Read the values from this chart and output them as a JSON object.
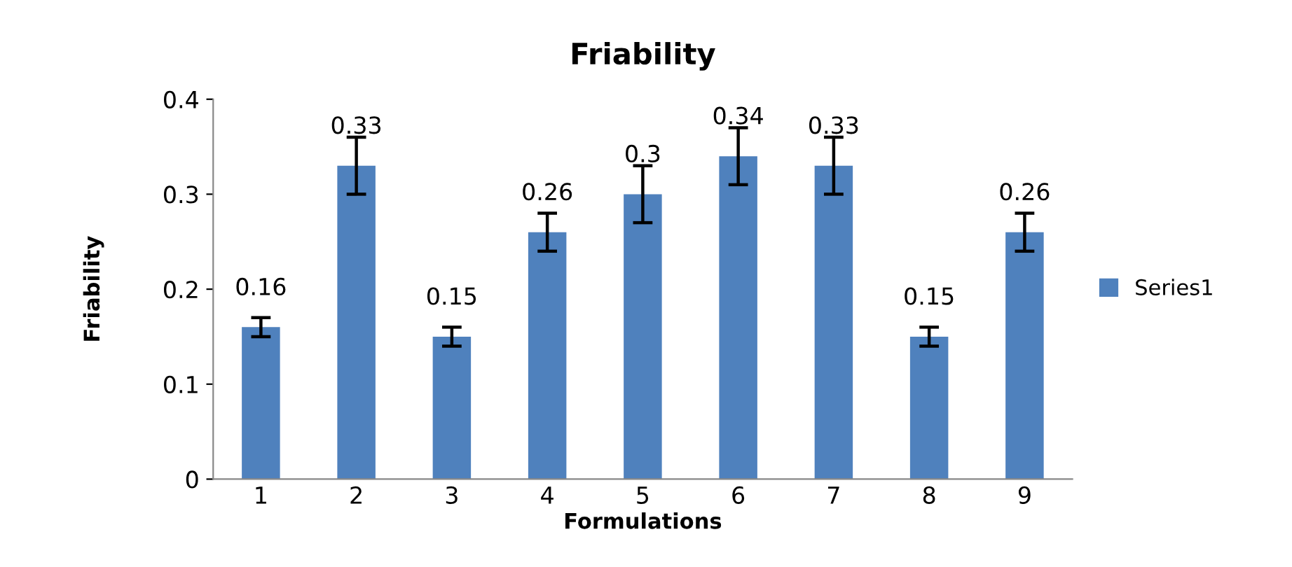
{
  "chart_data": {
    "type": "bar",
    "title": "Friability",
    "xlabel": "Formulations",
    "ylabel": "Friability",
    "categories": [
      "1",
      "2",
      "3",
      "4",
      "5",
      "6",
      "7",
      "8",
      "9"
    ],
    "series": [
      {
        "name": "Series1",
        "color": "#4f81bd",
        "values": [
          0.16,
          0.33,
          0.15,
          0.26,
          0.3,
          0.34,
          0.33,
          0.15,
          0.26
        ],
        "errors": [
          0.01,
          0.03,
          0.01,
          0.02,
          0.03,
          0.03,
          0.03,
          0.01,
          0.02
        ]
      }
    ],
    "ylim": [
      0,
      0.4
    ],
    "yticks": [
      0,
      0.1,
      0.2,
      0.3,
      0.4
    ],
    "grid": false,
    "legend": "right",
    "data_labels": true
  }
}
